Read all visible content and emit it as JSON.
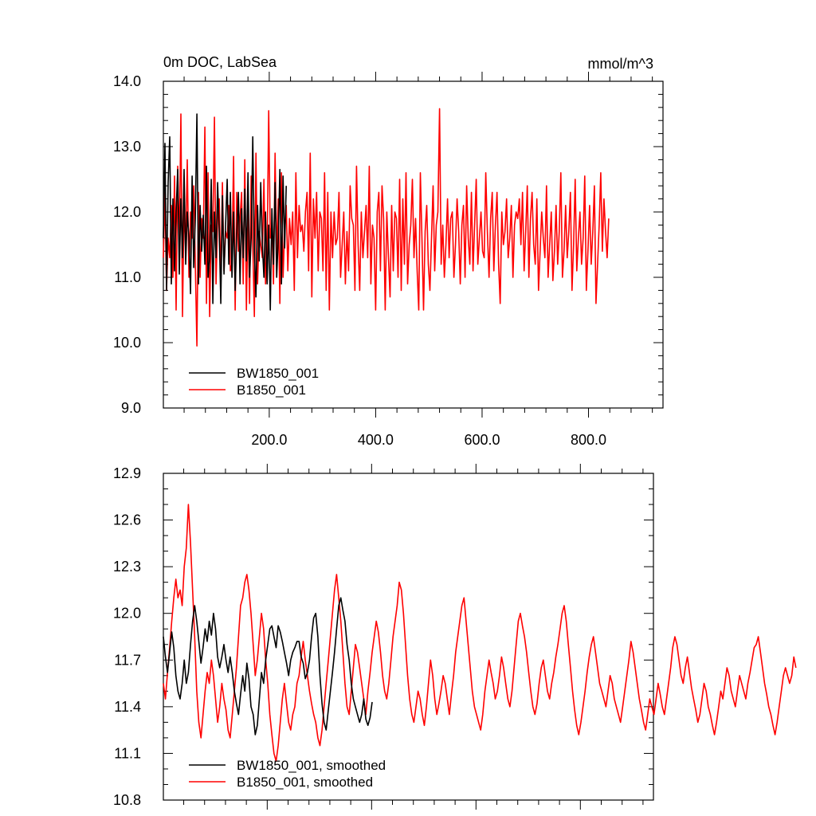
{
  "chart_data": [
    {
      "type": "line",
      "title": "0m DOC, LabSea",
      "units": "mmol/m^3",
      "xlim": [
        1,
        940
      ],
      "ylim": [
        9.0,
        14.0
      ],
      "xticks": [
        200,
        400,
        600,
        800
      ],
      "xtick_labels": [
        "200.0",
        "400.0",
        "600.0",
        "800.0"
      ],
      "yticks": [
        9,
        10,
        11,
        12,
        13,
        14
      ],
      "ytick_labels": [
        "9.0",
        "10.0",
        "11.0",
        "12.0",
        "13.0",
        "14.0"
      ],
      "legend_position": "bottom-left",
      "series": [
        {
          "name": "BW1850_001",
          "color": "#000000",
          "x_start": 1,
          "x_step": 3,
          "values": [
            11.6,
            13.05,
            10.8,
            12.45,
            13.15,
            10.9,
            12.2,
            11.1,
            12.0,
            12.65,
            11.05,
            12.2,
            11.3,
            12.65,
            11.2,
            12.0,
            11.6,
            10.75,
            12.55,
            11.15,
            11.9,
            13.5,
            10.9,
            12.1,
            11.4,
            11.95,
            11.2,
            12.7,
            11.0,
            11.3,
            12.5,
            10.6,
            12.0,
            11.3,
            12.45,
            11.7,
            10.6,
            12.25,
            11.05,
            11.8,
            12.5,
            11.2,
            12.3,
            11.0,
            12.0,
            10.8,
            11.65,
            12.3,
            10.9,
            12.05,
            11.3,
            12.35,
            11.25,
            12.6,
            11.0,
            11.6,
            13.15,
            11.4,
            10.7,
            12.1,
            11.25,
            12.45,
            11.5,
            11.0,
            12.0,
            10.9,
            11.8,
            10.5,
            12.05,
            11.2,
            12.45,
            11.0,
            11.6,
            12.65,
            10.9,
            12.55,
            11.45,
            12.4
          ]
        },
        {
          "name": "B1850_001",
          "color": "#ff0000",
          "x_start": 1,
          "x_step": 3,
          "values": [
            11.3,
            12.3,
            10.8,
            11.6,
            11.3,
            12.1,
            11.0,
            12.55,
            10.5,
            12.7,
            11.45,
            13.5,
            10.4,
            12.1,
            11.4,
            12.8,
            11.0,
            12.0,
            11.6,
            12.4,
            11.2,
            9.95,
            12.3,
            11.0,
            11.9,
            11.6,
            13.3,
            10.6,
            12.6,
            10.4,
            11.8,
            11.7,
            13.45,
            10.9,
            11.9,
            12.2,
            10.9,
            12.45,
            11.1,
            11.7,
            11.6,
            12.1,
            11.1,
            11.2,
            12.85,
            10.5,
            12.3,
            11.4,
            11.9,
            12.3,
            10.9,
            12.8,
            10.5,
            12.0,
            10.6,
            12.55,
            11.5,
            10.4,
            12.9,
            10.9,
            11.7,
            11.5,
            11.3,
            12.5,
            10.9,
            11.4,
            13.55,
            11.6,
            11.8,
            10.9,
            12.9,
            11.3,
            12.2,
            10.6,
            12.6,
            11.0,
            11.7,
            12.1,
            11.1,
            11.9,
            11.5,
            12.0,
            10.8,
            12.6,
            11.3,
            12.1,
            11.7,
            11.8,
            11.4,
            12.0,
            12.3,
            11.1,
            12.9,
            10.7,
            12.2,
            11.6,
            12.3,
            11.1,
            12.0,
            11.9,
            11.1,
            12.6,
            10.8,
            12.3,
            10.5,
            12.0,
            11.3,
            12.0,
            11.5,
            11.6,
            12.3,
            11.0,
            11.5,
            12.0,
            10.9,
            11.7,
            11.1,
            12.4,
            11.9,
            11.8,
            10.8,
            12.7,
            11.5,
            10.8,
            12.0,
            11.3,
            11.7,
            12.1,
            11.3,
            12.7,
            10.9,
            11.8,
            11.6,
            10.5,
            12.0,
            12.3,
            11.1,
            12.4,
            11.9,
            10.5,
            12.0,
            11.3,
            10.7,
            12.1,
            11.1,
            12.0,
            11.9,
            11.0,
            12.5,
            10.8,
            12.2,
            11.2,
            12.6,
            10.9,
            11.5,
            11.8,
            12.5,
            11.3,
            11.9,
            11.1,
            10.5,
            12.6,
            11.6,
            10.5,
            11.7,
            12.1,
            11.2,
            10.8,
            11.6,
            12.4,
            11.1,
            11.8,
            12.0,
            13.58,
            11.2,
            11.8,
            11.0,
            11.5,
            12.2,
            11.3,
            11.9,
            12.0,
            11.0,
            11.5,
            12.2,
            11.7,
            10.9,
            11.8,
            12.1,
            11.0,
            12.4,
            11.6,
            11.2,
            12.3,
            11.1,
            11.8,
            12.5,
            11.2,
            11.6,
            12.0,
            11.4,
            11.3,
            12.6,
            11.7,
            11.0,
            11.9,
            12.3,
            11.1,
            11.8,
            12.3,
            11.2,
            10.6,
            12.0,
            11.5,
            11.7,
            12.2,
            11.3,
            11.6,
            12.1,
            11.0,
            11.8,
            12.0,
            11.9,
            12.2,
            11.5,
            12.3,
            11.1,
            11.7,
            12.4,
            11.0,
            11.9,
            12.3,
            11.5,
            11.2,
            12.2,
            10.8,
            11.4,
            12.0,
            11.6,
            11.3,
            12.4,
            11.0,
            11.5,
            12.0,
            10.95,
            11.4,
            12.1,
            11.2,
            11.7,
            12.6,
            11.0,
            11.4,
            12.1,
            11.3,
            11.7,
            12.3,
            10.8,
            11.5,
            12.5,
            11.1,
            11.6,
            12.0,
            11.2,
            11.6,
            12.55,
            10.8,
            11.4,
            12.1,
            11.2,
            11.7,
            12.4,
            10.6,
            11.2,
            11.8,
            12.6,
            11.4,
            12.2,
            11.7,
            11.3,
            11.9
          ]
        }
      ]
    },
    {
      "type": "line",
      "xlim": [
        1,
        940
      ],
      "ylim": [
        10.8,
        12.9
      ],
      "xticks": [
        200,
        400,
        600,
        800
      ],
      "yticks": [
        10.8,
        11.1,
        11.4,
        11.7,
        12.0,
        12.3,
        12.6,
        12.9
      ],
      "ytick_labels": [
        "10.8",
        "11.1",
        "11.4",
        "11.7",
        "12.0",
        "12.3",
        "12.6",
        "12.9"
      ],
      "legend_position": "bottom-left",
      "series": [
        {
          "name": "BW1850_001, smoothed",
          "color": "#000000",
          "x_start": 1,
          "x_step": 4,
          "values": [
            11.85,
            11.72,
            11.62,
            11.75,
            11.88,
            11.78,
            11.6,
            11.5,
            11.45,
            11.55,
            11.7,
            11.55,
            11.62,
            11.8,
            11.95,
            12.05,
            11.95,
            11.82,
            11.68,
            11.78,
            11.9,
            11.82,
            11.95,
            11.86,
            12.0,
            11.9,
            11.72,
            11.65,
            11.72,
            11.8,
            11.7,
            11.62,
            11.72,
            11.62,
            11.5,
            11.42,
            11.35,
            11.48,
            11.6,
            11.5,
            11.68,
            11.58,
            11.4,
            11.35,
            11.22,
            11.28,
            11.45,
            11.62,
            11.55,
            11.7,
            11.8,
            11.9,
            11.92,
            11.85,
            11.78,
            11.92,
            11.88,
            11.82,
            11.75,
            11.68,
            11.6,
            11.7,
            11.75,
            11.78,
            11.82,
            11.82,
            11.72,
            11.68,
            11.58,
            11.62,
            11.7,
            11.85,
            11.97,
            12.0,
            11.85,
            11.6,
            11.42,
            11.3,
            11.25,
            11.38,
            11.5,
            11.62,
            11.75,
            11.9,
            12.05,
            12.1,
            12.02,
            11.95,
            11.8,
            11.7,
            11.55,
            11.45,
            11.4,
            11.35,
            11.3,
            11.35,
            11.45,
            11.32,
            11.28,
            11.33,
            11.43
          ]
        },
        {
          "name": "B1850_001, smoothed",
          "color": "#ff0000",
          "x_start": 1,
          "x_step": 4,
          "values": [
            11.55,
            11.45,
            11.62,
            11.78,
            11.95,
            12.1,
            12.22,
            12.1,
            12.15,
            12.05,
            12.3,
            12.42,
            12.7,
            12.45,
            12.15,
            11.85,
            11.5,
            11.3,
            11.2,
            11.35,
            11.5,
            11.62,
            11.55,
            11.7,
            11.6,
            11.45,
            11.3,
            11.4,
            11.55,
            11.45,
            11.38,
            11.25,
            11.2,
            11.35,
            11.5,
            11.65,
            11.85,
            12.05,
            12.1,
            12.2,
            12.25,
            12.15,
            12.0,
            11.8,
            11.6,
            11.7,
            11.85,
            12.0,
            11.9,
            11.7,
            11.55,
            11.35,
            11.22,
            11.1,
            11.05,
            11.15,
            11.3,
            11.45,
            11.55,
            11.42,
            11.3,
            11.25,
            11.35,
            11.4,
            11.55,
            11.6,
            11.72,
            11.82,
            11.7,
            11.6,
            11.5,
            11.42,
            11.35,
            11.3,
            11.2,
            11.15,
            11.25,
            11.4,
            11.55,
            11.7,
            11.85,
            12.0,
            12.15,
            12.25,
            12.1,
            11.95,
            11.75,
            11.55,
            11.4,
            11.35,
            11.5,
            11.65,
            11.8,
            11.75,
            11.65,
            11.55,
            11.45,
            11.35,
            11.5,
            11.62,
            11.75,
            11.85,
            11.95,
            11.88,
            11.75,
            11.6,
            11.5,
            11.45,
            11.55,
            11.7,
            11.85,
            11.95,
            12.05,
            12.2,
            12.15,
            12.0,
            11.8,
            11.6,
            11.45,
            11.35,
            11.3,
            11.4,
            11.5,
            11.45,
            11.35,
            11.28,
            11.4,
            11.55,
            11.7,
            11.6,
            11.45,
            11.35,
            11.42,
            11.5,
            11.6,
            11.55,
            11.45,
            11.35,
            11.48,
            11.6,
            11.75,
            11.85,
            11.95,
            12.05,
            12.1,
            11.95,
            11.8,
            11.65,
            11.5,
            11.4,
            11.35,
            11.3,
            11.25,
            11.35,
            11.5,
            11.6,
            11.7,
            11.62,
            11.55,
            11.45,
            11.5,
            11.6,
            11.72,
            11.65,
            11.55,
            11.45,
            11.4,
            11.5,
            11.65,
            11.8,
            11.95,
            12.0,
            11.92,
            11.85,
            11.75,
            11.62,
            11.5,
            11.4,
            11.35,
            11.42,
            11.55,
            11.65,
            11.7,
            11.6,
            11.5,
            11.45,
            11.55,
            11.62,
            11.72,
            11.8,
            11.9,
            12.0,
            12.05,
            11.95,
            11.8,
            11.65,
            11.5,
            11.38,
            11.28,
            11.22,
            11.3,
            11.4,
            11.5,
            11.62,
            11.72,
            11.8,
            11.85,
            11.75,
            11.65,
            11.55,
            11.5,
            11.45,
            11.4,
            11.5,
            11.6,
            11.55,
            11.45,
            11.4,
            11.35,
            11.3,
            11.4,
            11.5,
            11.6,
            11.7,
            11.82,
            11.75,
            11.65,
            11.55,
            11.45,
            11.38,
            11.3,
            11.25,
            11.35,
            11.45,
            11.4,
            11.35,
            11.45,
            11.55,
            11.48,
            11.4,
            11.35,
            11.45,
            11.55,
            11.65,
            11.78,
            11.85,
            11.8,
            11.7,
            11.6,
            11.55,
            11.65,
            11.72,
            11.62,
            11.52,
            11.45,
            11.38,
            11.3,
            11.35,
            11.45,
            11.55,
            11.5,
            11.4,
            11.35,
            11.28,
            11.22,
            11.3,
            11.4,
            11.5,
            11.45,
            11.55,
            11.65,
            11.6,
            11.5,
            11.45,
            11.4,
            11.5,
            11.6,
            11.55,
            11.5,
            11.45,
            11.55,
            11.62,
            11.7,
            11.78,
            11.8,
            11.85,
            11.75,
            11.65,
            11.55,
            11.48,
            11.4,
            11.35,
            11.28,
            11.22,
            11.3,
            11.4,
            11.5,
            11.6,
            11.65,
            11.6,
            11.55,
            11.6,
            11.72,
            11.65
          ]
        }
      ]
    }
  ]
}
